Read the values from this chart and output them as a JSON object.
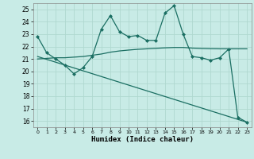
{
  "xlabel": "Humidex (Indice chaleur)",
  "xlim": [
    -0.5,
    23.5
  ],
  "ylim": [
    15.5,
    25.5
  ],
  "yticks": [
    16,
    17,
    18,
    19,
    20,
    21,
    22,
    23,
    24,
    25
  ],
  "xticks": [
    0,
    1,
    2,
    3,
    4,
    5,
    6,
    7,
    8,
    9,
    10,
    11,
    12,
    13,
    14,
    15,
    16,
    17,
    18,
    19,
    20,
    21,
    22,
    23
  ],
  "bg_color": "#c8ebe6",
  "grid_color": "#b0d8d0",
  "line_color": "#1a6e62",
  "line1_x": [
    0,
    1,
    2,
    3,
    4,
    5,
    6,
    7,
    8,
    9,
    10,
    11,
    12,
    13,
    14,
    15,
    16,
    17,
    18,
    19,
    20,
    21,
    22,
    23
  ],
  "line1_y": [
    22.8,
    21.5,
    21.0,
    20.5,
    19.8,
    20.3,
    21.2,
    23.4,
    24.5,
    23.2,
    22.8,
    22.9,
    22.5,
    22.5,
    24.7,
    25.3,
    23.0,
    21.2,
    21.1,
    20.9,
    21.1,
    21.8,
    16.3,
    15.9
  ],
  "line2_x": [
    0,
    1,
    2,
    3,
    4,
    5,
    6,
    7,
    8,
    9,
    10,
    11,
    12,
    13,
    14,
    15,
    16,
    17,
    18,
    19,
    20,
    21,
    22,
    23
  ],
  "line2_y": [
    21.0,
    21.05,
    21.1,
    21.1,
    21.15,
    21.2,
    21.3,
    21.4,
    21.55,
    21.65,
    21.72,
    21.78,
    21.82,
    21.86,
    21.9,
    21.93,
    21.93,
    21.88,
    21.85,
    21.83,
    21.82,
    21.82,
    21.82,
    21.82
  ],
  "line3_x": [
    0,
    23
  ],
  "line3_y": [
    21.2,
    15.9
  ]
}
